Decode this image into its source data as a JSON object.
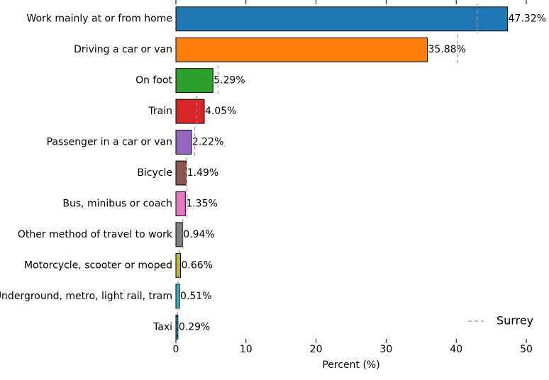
{
  "chart_data": {
    "type": "bar",
    "orientation": "horizontal",
    "categories": [
      "Work mainly at or from home",
      "Driving a car or van",
      "On foot",
      "Train",
      "Passenger in a car or van",
      "Bicycle",
      "Bus, minibus or coach",
      "Other method of travel to work",
      "Motorcycle, scooter or moped",
      "Underground, metro, light rail, tram",
      "Taxi"
    ],
    "values": [
      47.32,
      35.88,
      5.29,
      4.05,
      2.22,
      1.49,
      1.35,
      0.94,
      0.66,
      0.51,
      0.29
    ],
    "value_labels": [
      "47.32%",
      "35.88%",
      "5.29%",
      "4.05%",
      "2.22%",
      "1.49%",
      "1.35%",
      "0.94%",
      "0.66%",
      "0.51%",
      "0.29%"
    ],
    "colors": [
      "#1f77b4",
      "#ff7f0e",
      "#2ca02c",
      "#d62728",
      "#9467bd",
      "#8c564b",
      "#e377c2",
      "#7f7f7f",
      "#bcbd22",
      "#17becf",
      "#1f77b4"
    ],
    "reference": {
      "name": "Surrey",
      "color": "#999999",
      "values": [
        43.0,
        40.2,
        6.0,
        3.0,
        2.7,
        1.5,
        1.6,
        1.0,
        0.5,
        0.3,
        0.2
      ]
    },
    "xlabel": "Percent (%)",
    "xlim": [
      0,
      50
    ],
    "xticks": [
      0,
      10,
      20,
      30,
      40,
      50
    ],
    "legend": "lower right"
  }
}
